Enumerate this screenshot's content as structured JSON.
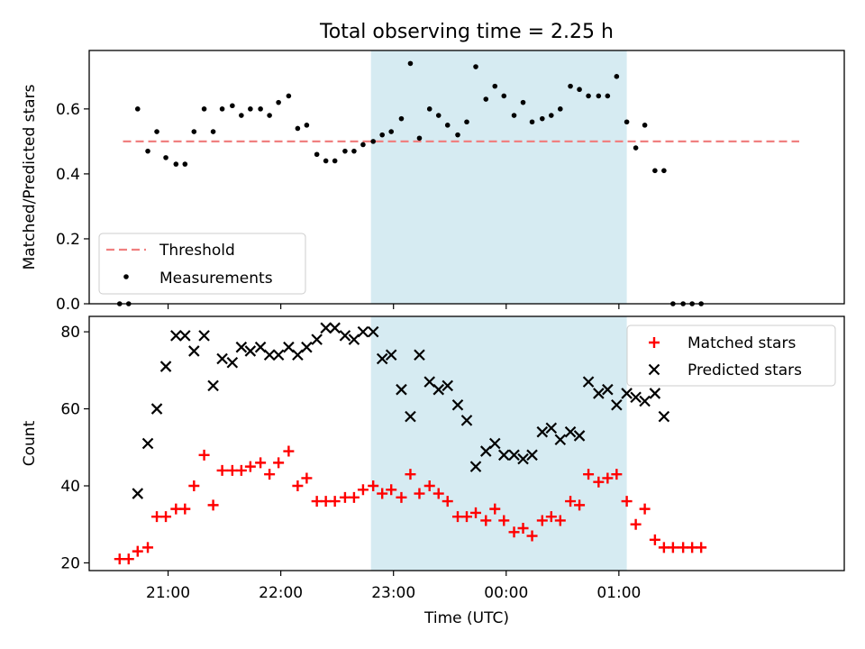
{
  "title": "Total observing time = 2.25 h",
  "colors": {
    "shade": "#add8e6",
    "threshold": "#f08080",
    "matched": "#ff0000",
    "predicted": "#000000",
    "measurement": "#000000"
  },
  "chart_data": [
    {
      "type": "scatter",
      "title": "Total observing time = 2.25 h",
      "ylabel": "Matched/Predicted stars",
      "xlabel": "",
      "x_units": "decimal hours from 20:00 UTC",
      "xlim": [
        20.3,
        27.0
      ],
      "ylim": [
        0,
        0.78
      ],
      "yticks": [
        0.0,
        0.2,
        0.4,
        0.6
      ],
      "ytick_labels": [
        "0.0",
        "0.2",
        "0.4",
        "0.6"
      ],
      "shaded_interval": [
        22.8,
        25.07
      ],
      "legend": {
        "position": "lower-left",
        "entries": [
          "Threshold",
          "Measurements"
        ]
      },
      "threshold": {
        "name": "Threshold",
        "value": 0.5,
        "x_range": [
          20.6,
          26.6
        ]
      },
      "series": [
        {
          "name": "Measurements",
          "points": [
            [
              20.57,
              0.0
            ],
            [
              20.65,
              0.0
            ],
            [
              20.73,
              0.6
            ],
            [
              20.82,
              0.47
            ],
            [
              20.9,
              0.53
            ],
            [
              20.98,
              0.45
            ],
            [
              21.07,
              0.43
            ],
            [
              21.15,
              0.43
            ],
            [
              21.23,
              0.53
            ],
            [
              21.32,
              0.6
            ],
            [
              21.4,
              0.53
            ],
            [
              21.48,
              0.6
            ],
            [
              21.57,
              0.61
            ],
            [
              21.65,
              0.58
            ],
            [
              21.73,
              0.6
            ],
            [
              21.82,
              0.6
            ],
            [
              21.9,
              0.58
            ],
            [
              21.98,
              0.62
            ],
            [
              22.07,
              0.64
            ],
            [
              22.15,
              0.54
            ],
            [
              22.23,
              0.55
            ],
            [
              22.32,
              0.46
            ],
            [
              22.4,
              0.44
            ],
            [
              22.48,
              0.44
            ],
            [
              22.57,
              0.47
            ],
            [
              22.65,
              0.47
            ],
            [
              22.73,
              0.49
            ],
            [
              22.82,
              0.5
            ],
            [
              22.9,
              0.52
            ],
            [
              22.98,
              0.53
            ],
            [
              23.07,
              0.57
            ],
            [
              23.15,
              0.74
            ],
            [
              23.23,
              0.51
            ],
            [
              23.32,
              0.6
            ],
            [
              23.4,
              0.58
            ],
            [
              23.48,
              0.55
            ],
            [
              23.57,
              0.52
            ],
            [
              23.65,
              0.56
            ],
            [
              23.73,
              0.73
            ],
            [
              23.82,
              0.63
            ],
            [
              23.9,
              0.67
            ],
            [
              23.98,
              0.64
            ],
            [
              24.07,
              0.58
            ],
            [
              24.15,
              0.62
            ],
            [
              24.23,
              0.56
            ],
            [
              24.32,
              0.57
            ],
            [
              24.4,
              0.58
            ],
            [
              24.48,
              0.6
            ],
            [
              24.57,
              0.67
            ],
            [
              24.65,
              0.66
            ],
            [
              24.73,
              0.64
            ],
            [
              24.82,
              0.64
            ],
            [
              24.9,
              0.64
            ],
            [
              24.98,
              0.7
            ],
            [
              25.07,
              0.56
            ],
            [
              25.15,
              0.48
            ],
            [
              25.23,
              0.55
            ],
            [
              25.32,
              0.41
            ],
            [
              25.4,
              0.41
            ],
            [
              25.48,
              0.0
            ],
            [
              25.57,
              0.0
            ],
            [
              25.65,
              0.0
            ],
            [
              25.73,
              0.0
            ]
          ]
        }
      ]
    },
    {
      "type": "scatter",
      "title": "",
      "ylabel": "Count",
      "xlabel": "Time (UTC)",
      "x_units": "decimal hours from 20:00 UTC",
      "xlim": [
        20.3,
        27.0
      ],
      "ylim": [
        18,
        84
      ],
      "yticks": [
        20,
        40,
        60,
        80
      ],
      "ytick_labels": [
        "20",
        "40",
        "60",
        "80"
      ],
      "xticks": [
        21,
        22,
        23,
        24,
        25
      ],
      "xtick_labels": [
        "21:00",
        "22:00",
        "23:00",
        "00:00",
        "01:00"
      ],
      "shaded_interval": [
        22.8,
        25.07
      ],
      "legend": {
        "position": "upper-right",
        "entries": [
          "Matched stars",
          "Predicted stars"
        ]
      },
      "series": [
        {
          "name": "Matched stars",
          "marker": "+",
          "points": [
            [
              20.57,
              21
            ],
            [
              20.65,
              21
            ],
            [
              20.73,
              23
            ],
            [
              20.82,
              24
            ],
            [
              20.9,
              32
            ],
            [
              20.98,
              32
            ],
            [
              21.07,
              34
            ],
            [
              21.15,
              34
            ],
            [
              21.23,
              40
            ],
            [
              21.32,
              48
            ],
            [
              21.4,
              35
            ],
            [
              21.48,
              44
            ],
            [
              21.57,
              44
            ],
            [
              21.65,
              44
            ],
            [
              21.73,
              45
            ],
            [
              21.82,
              46
            ],
            [
              21.9,
              43
            ],
            [
              21.98,
              46
            ],
            [
              22.07,
              49
            ],
            [
              22.15,
              40
            ],
            [
              22.23,
              42
            ],
            [
              22.32,
              36
            ],
            [
              22.4,
              36
            ],
            [
              22.48,
              36
            ],
            [
              22.57,
              37
            ],
            [
              22.65,
              37
            ],
            [
              22.73,
              39
            ],
            [
              22.82,
              40
            ],
            [
              22.9,
              38
            ],
            [
              22.98,
              39
            ],
            [
              23.07,
              37
            ],
            [
              23.15,
              43
            ],
            [
              23.23,
              38
            ],
            [
              23.32,
              40
            ],
            [
              23.4,
              38
            ],
            [
              23.48,
              36
            ],
            [
              23.57,
              32
            ],
            [
              23.65,
              32
            ],
            [
              23.73,
              33
            ],
            [
              23.82,
              31
            ],
            [
              23.9,
              34
            ],
            [
              23.98,
              31
            ],
            [
              24.07,
              28
            ],
            [
              24.15,
              29
            ],
            [
              24.23,
              27
            ],
            [
              24.32,
              31
            ],
            [
              24.4,
              32
            ],
            [
              24.48,
              31
            ],
            [
              24.57,
              36
            ],
            [
              24.65,
              35
            ],
            [
              24.73,
              43
            ],
            [
              24.82,
              41
            ],
            [
              24.9,
              42
            ],
            [
              24.98,
              43
            ],
            [
              25.07,
              36
            ],
            [
              25.15,
              30
            ],
            [
              25.23,
              34
            ],
            [
              25.32,
              26
            ],
            [
              25.4,
              24
            ],
            [
              25.48,
              24
            ],
            [
              25.57,
              24
            ],
            [
              25.65,
              24
            ],
            [
              25.73,
              24
            ]
          ]
        },
        {
          "name": "Predicted stars",
          "marker": "x",
          "points": [
            [
              20.73,
              38
            ],
            [
              20.82,
              51
            ],
            [
              20.9,
              60
            ],
            [
              20.98,
              71
            ],
            [
              21.07,
              79
            ],
            [
              21.15,
              79
            ],
            [
              21.23,
              75
            ],
            [
              21.32,
              79
            ],
            [
              21.4,
              66
            ],
            [
              21.48,
              73
            ],
            [
              21.57,
              72
            ],
            [
              21.65,
              76
            ],
            [
              21.73,
              75
            ],
            [
              21.82,
              76
            ],
            [
              21.9,
              74
            ],
            [
              21.98,
              74
            ],
            [
              22.07,
              76
            ],
            [
              22.15,
              74
            ],
            [
              22.23,
              76
            ],
            [
              22.32,
              78
            ],
            [
              22.4,
              81
            ],
            [
              22.48,
              81
            ],
            [
              22.57,
              79
            ],
            [
              22.65,
              78
            ],
            [
              22.73,
              80
            ],
            [
              22.82,
              80
            ],
            [
              22.9,
              73
            ],
            [
              22.98,
              74
            ],
            [
              23.07,
              65
            ],
            [
              23.15,
              58
            ],
            [
              23.23,
              74
            ],
            [
              23.32,
              67
            ],
            [
              23.4,
              65
            ],
            [
              23.48,
              66
            ],
            [
              23.57,
              61
            ],
            [
              23.65,
              57
            ],
            [
              23.73,
              45
            ],
            [
              23.82,
              49
            ],
            [
              23.9,
              51
            ],
            [
              23.98,
              48
            ],
            [
              24.07,
              48
            ],
            [
              24.15,
              47
            ],
            [
              24.23,
              48
            ],
            [
              24.32,
              54
            ],
            [
              24.4,
              55
            ],
            [
              24.48,
              52
            ],
            [
              24.57,
              54
            ],
            [
              24.65,
              53
            ],
            [
              24.73,
              67
            ],
            [
              24.82,
              64
            ],
            [
              24.9,
              65
            ],
            [
              24.98,
              61
            ],
            [
              25.07,
              64
            ],
            [
              25.15,
              63
            ],
            [
              25.23,
              62
            ],
            [
              25.32,
              64
            ],
            [
              25.4,
              58
            ]
          ]
        }
      ]
    }
  ]
}
